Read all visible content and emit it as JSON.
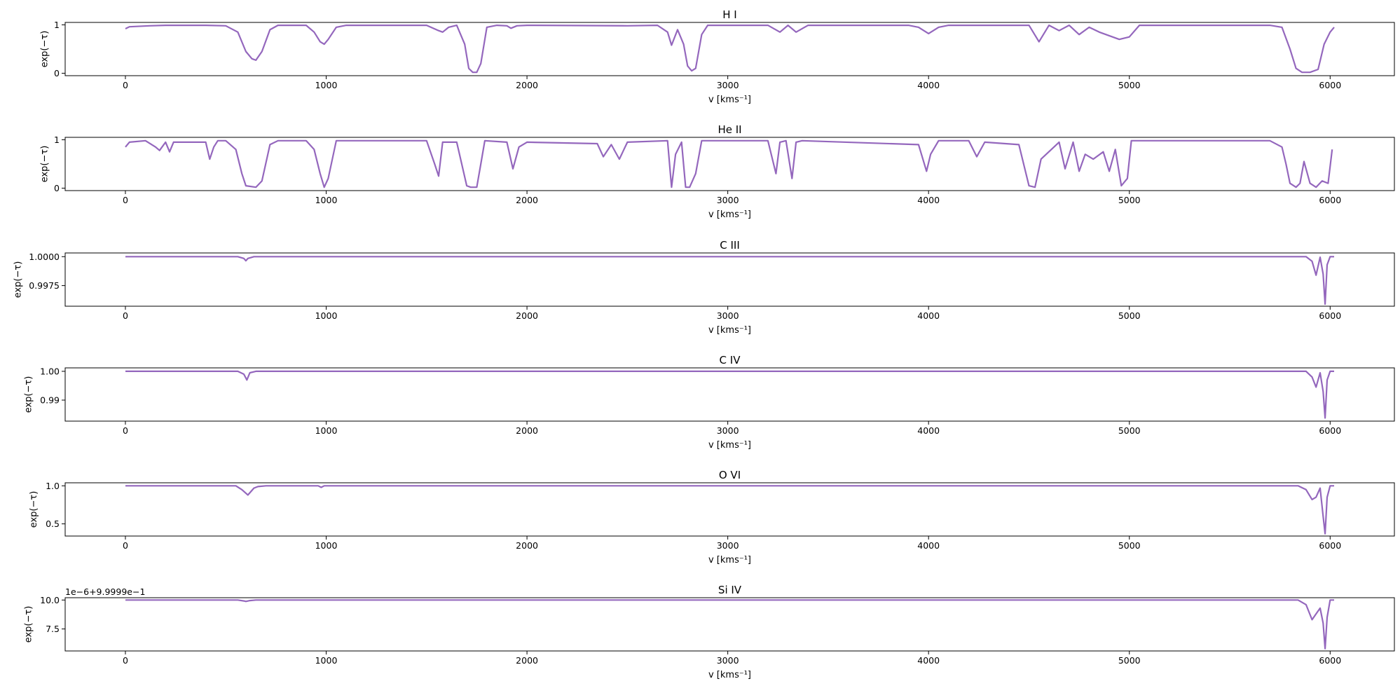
{
  "figure": {
    "line_color": "#9467bd"
  },
  "chart_data": [
    {
      "type": "line",
      "title": "H I",
      "xlabel": "v [kms⁻¹]",
      "ylabel": "exp(−τ)",
      "xlim": [
        -300,
        6320
      ],
      "ylim": [
        -0.05,
        1.05
      ],
      "xticks": [
        0,
        1000,
        2000,
        3000,
        4000,
        5000,
        6000
      ],
      "yticks": [
        0,
        1
      ],
      "ytick_labels": [
        "0",
        "1"
      ],
      "offset_label": "",
      "series": [
        {
          "x": [
            0,
            20,
            120,
            200,
            400,
            500,
            560,
            600,
            630,
            650,
            680,
            720,
            760,
            900,
            940,
            970,
            990,
            1010,
            1050,
            1100,
            1500,
            1560,
            1580,
            1610,
            1650,
            1690,
            1710,
            1730,
            1750,
            1770,
            1800,
            1850,
            1900,
            1920,
            1950,
            2000,
            2500,
            2650,
            2700,
            2720,
            2750,
            2780,
            2800,
            2820,
            2840,
            2870,
            2900,
            3000,
            3200,
            3260,
            3300,
            3340,
            3400,
            3900,
            3950,
            4000,
            4050,
            4100,
            4500,
            4550,
            4600,
            4650,
            4700,
            4750,
            4800,
            4850,
            4950,
            5000,
            5050,
            5100,
            5700,
            5760,
            5800,
            5830,
            5860,
            5900,
            5940,
            5970,
            6000,
            6020
          ],
          "y": [
            0.92,
            0.96,
            0.98,
            0.99,
            0.99,
            0.98,
            0.85,
            0.45,
            0.3,
            0.27,
            0.45,
            0.9,
            0.99,
            0.99,
            0.85,
            0.65,
            0.6,
            0.7,
            0.95,
            0.99,
            0.99,
            0.88,
            0.85,
            0.95,
            0.99,
            0.6,
            0.1,
            0.02,
            0.02,
            0.2,
            0.95,
            0.99,
            0.98,
            0.93,
            0.98,
            0.99,
            0.98,
            0.99,
            0.85,
            0.58,
            0.9,
            0.6,
            0.15,
            0.05,
            0.1,
            0.8,
            0.99,
            0.99,
            0.99,
            0.85,
            0.99,
            0.85,
            0.99,
            0.99,
            0.95,
            0.82,
            0.95,
            0.99,
            0.99,
            0.65,
            0.99,
            0.88,
            0.99,
            0.8,
            0.95,
            0.85,
            0.7,
            0.75,
            0.99,
            0.99,
            0.99,
            0.95,
            0.5,
            0.1,
            0.02,
            0.02,
            0.08,
            0.6,
            0.85,
            0.95
          ]
        }
      ]
    },
    {
      "type": "line",
      "title": "He II",
      "xlabel": "v [kms⁻¹]",
      "ylabel": "exp(−τ)",
      "xlim": [
        -300,
        6320
      ],
      "ylim": [
        -0.05,
        1.05
      ],
      "xticks": [
        0,
        1000,
        2000,
        3000,
        4000,
        5000,
        6000
      ],
      "yticks": [
        0,
        1
      ],
      "ytick_labels": [
        "0",
        "1"
      ],
      "offset_label": "",
      "series": [
        {
          "x": [
            0,
            20,
            100,
            150,
            170,
            200,
            220,
            240,
            400,
            420,
            440,
            460,
            500,
            550,
            580,
            600,
            650,
            680,
            720,
            760,
            900,
            940,
            970,
            990,
            1010,
            1050,
            1500,
            1540,
            1560,
            1580,
            1650,
            1700,
            1720,
            1750,
            1770,
            1790,
            1900,
            1930,
            1960,
            2000,
            2350,
            2380,
            2420,
            2460,
            2500,
            2700,
            2720,
            2740,
            2770,
            2790,
            2810,
            2840,
            2870,
            3200,
            3240,
            3260,
            3290,
            3320,
            3340,
            3370,
            3950,
            3990,
            4010,
            4050,
            4200,
            4240,
            4280,
            4450,
            4500,
            4530,
            4560,
            4650,
            4680,
            4720,
            4750,
            4780,
            4820,
            4870,
            4900,
            4930,
            4960,
            4990,
            5010,
            5100,
            5700,
            5760,
            5780,
            5800,
            5830,
            5850,
            5870,
            5900,
            5930,
            5960,
            5990,
            6010
          ],
          "y": [
            0.85,
            0.95,
            0.98,
            0.85,
            0.78,
            0.95,
            0.75,
            0.95,
            0.95,
            0.6,
            0.85,
            0.98,
            0.98,
            0.8,
            0.3,
            0.05,
            0.02,
            0.15,
            0.9,
            0.98,
            0.98,
            0.8,
            0.3,
            0.02,
            0.2,
            0.98,
            0.98,
            0.5,
            0.25,
            0.95,
            0.95,
            0.05,
            0.02,
            0.02,
            0.5,
            0.98,
            0.95,
            0.4,
            0.85,
            0.95,
            0.92,
            0.65,
            0.9,
            0.6,
            0.95,
            0.98,
            0.02,
            0.7,
            0.95,
            0.02,
            0.02,
            0.3,
            0.98,
            0.98,
            0.3,
            0.95,
            0.98,
            0.2,
            0.95,
            0.98,
            0.9,
            0.35,
            0.7,
            0.98,
            0.98,
            0.65,
            0.95,
            0.9,
            0.05,
            0.02,
            0.6,
            0.95,
            0.4,
            0.95,
            0.35,
            0.7,
            0.6,
            0.75,
            0.35,
            0.8,
            0.05,
            0.2,
            0.98,
            0.98,
            0.98,
            0.85,
            0.5,
            0.1,
            0.02,
            0.1,
            0.55,
            0.1,
            0.02,
            0.15,
            0.1,
            0.8
          ]
        }
      ]
    },
    {
      "type": "line",
      "title": "C III",
      "xlabel": "v [kms⁻¹]",
      "ylabel": "exp(−τ)",
      "xlim": [
        -300,
        6320
      ],
      "ylim": [
        0.99572,
        1.00032
      ],
      "xticks": [
        0,
        1000,
        2000,
        3000,
        4000,
        5000,
        6000
      ],
      "yticks": [
        1.0,
        0.9975
      ],
      "ytick_labels": [
        "1.0000",
        "0.9975"
      ],
      "offset_label": "",
      "series": [
        {
          "x": [
            0,
            560,
            590,
            600,
            610,
            640,
            5880,
            5910,
            5930,
            5950,
            5965,
            5975,
            5985,
            6000,
            6020
          ],
          "y": [
            1.0,
            1.0,
            0.99985,
            0.99965,
            0.99985,
            1.0,
            1.0,
            0.9996,
            0.9984,
            0.99995,
            0.9985,
            0.9959,
            0.9993,
            1.0,
            1.0
          ]
        }
      ]
    },
    {
      "type": "line",
      "title": "C IV",
      "xlabel": "v [kms⁻¹]",
      "ylabel": "exp(−τ)",
      "xlim": [
        -300,
        6320
      ],
      "ylim": [
        0.9827,
        1.0012
      ],
      "xticks": [
        0,
        1000,
        2000,
        3000,
        4000,
        5000,
        6000
      ],
      "yticks": [
        1.0,
        0.99
      ],
      "ytick_labels": [
        "1.00",
        "0.99"
      ],
      "offset_label": "",
      "series": [
        {
          "x": [
            0,
            560,
            590,
            605,
            620,
            650,
            5880,
            5910,
            5930,
            5950,
            5965,
            5975,
            5985,
            6000,
            6020
          ],
          "y": [
            1.0,
            1.0,
            0.999,
            0.997,
            0.9995,
            1.0,
            1.0,
            0.998,
            0.9945,
            0.9995,
            0.993,
            0.9838,
            0.997,
            1.0,
            1.0
          ]
        }
      ]
    },
    {
      "type": "line",
      "title": "O VI",
      "xlabel": "v [kms⁻¹]",
      "ylabel": "exp(−τ)",
      "xlim": [
        -300,
        6320
      ],
      "ylim": [
        0.34,
        1.04
      ],
      "xticks": [
        0,
        1000,
        2000,
        3000,
        4000,
        5000,
        6000
      ],
      "yticks": [
        1.0,
        0.5
      ],
      "ytick_labels": [
        "1.0",
        "0.5"
      ],
      "offset_label": "",
      "series": [
        {
          "x": [
            0,
            550,
            580,
            610,
            640,
            660,
            700,
            960,
            975,
            990,
            5840,
            5880,
            5910,
            5930,
            5950,
            5965,
            5975,
            5985,
            6000,
            6020
          ],
          "y": [
            1.0,
            1.0,
            0.95,
            0.88,
            0.97,
            0.99,
            1.0,
            1.0,
            0.98,
            1.0,
            1.0,
            0.95,
            0.82,
            0.85,
            0.97,
            0.6,
            0.37,
            0.85,
            1.0,
            1.0
          ]
        }
      ]
    },
    {
      "type": "line",
      "title": "Si IV",
      "xlabel": "v [kms⁻¹]",
      "ylabel": "exp(−τ)",
      "xlim": [
        -300,
        6320
      ],
      "ylim": [
        5.6,
        10.2
      ],
      "xticks": [
        0,
        1000,
        2000,
        3000,
        4000,
        5000,
        6000
      ],
      "yticks": [
        10.0,
        7.5
      ],
      "ytick_labels": [
        "10.0",
        "7.5"
      ],
      "offset_label": "1e−6+9.9999e−1",
      "series": [
        {
          "x": [
            0,
            560,
            590,
            600,
            620,
            650,
            5840,
            5880,
            5910,
            5930,
            5950,
            5965,
            5975,
            5985,
            6000,
            6020
          ],
          "y": [
            10.0,
            10.0,
            9.92,
            9.88,
            9.95,
            10.0,
            10.0,
            9.6,
            8.3,
            8.8,
            9.3,
            8.0,
            5.8,
            8.5,
            10.0,
            10.0
          ]
        }
      ]
    }
  ]
}
